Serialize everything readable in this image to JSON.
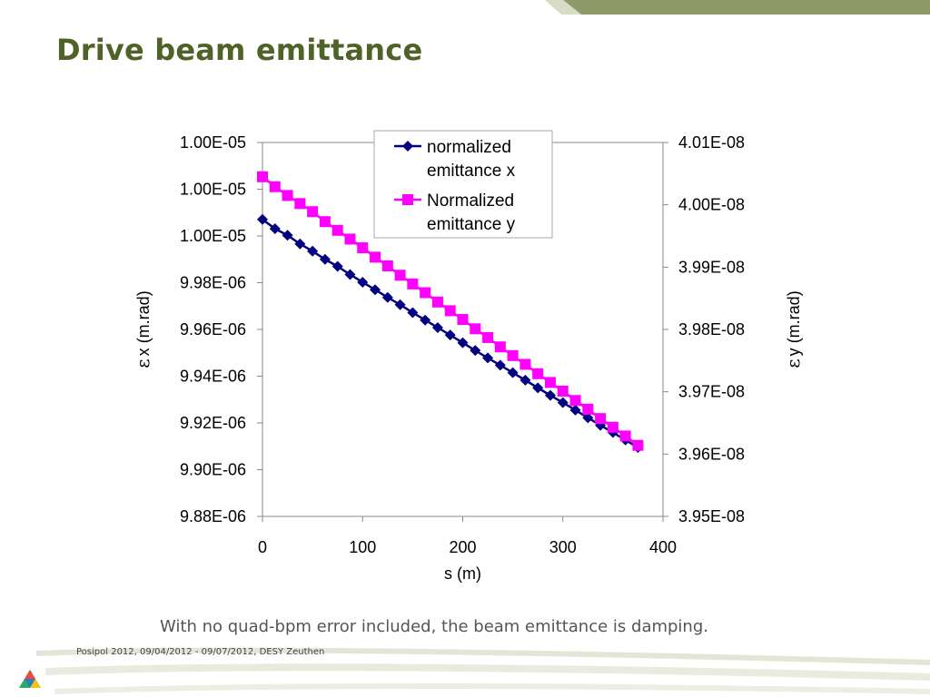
{
  "slide": {
    "title": "Drive beam emittance",
    "caption": "With no quad-bpm error included, the beam emittance is damping.",
    "footer": "Posipol 2012, 09/04/2012 - 09/07/2012, DESY Zeuthen",
    "colors": {
      "title": "#4f6228",
      "band": "#8e9a6a",
      "band_light": "#d7dcc5"
    }
  },
  "chart_data": {
    "type": "line",
    "xlabel": "s (m)",
    "xlim": [
      0,
      400
    ],
    "x_ticks": [
      "0",
      "100",
      "200",
      "300",
      "400"
    ],
    "y_left": {
      "label_symbol": "ε",
      "label_text": "x (m.rad)",
      "ylim": [
        9.88e-06,
        1.004e-05
      ],
      "tick_labels": [
        "1.00E-05",
        "1.00E-05",
        "1.00E-05",
        "9.98E-06",
        "9.96E-06",
        "9.94E-06",
        "9.92E-06",
        "9.90E-06",
        "9.88E-06"
      ]
    },
    "y_right": {
      "label_symbol": "ε",
      "label_text": "y (m.rad)",
      "ylim": [
        3.95e-08,
        4.01e-08
      ],
      "tick_labels": [
        "4.01E-08",
        "4.00E-08",
        "3.99E-08",
        "3.98E-08",
        "3.97E-08",
        "3.96E-08",
        "3.95E-08"
      ]
    },
    "legend": {
      "placement": "top-center"
    },
    "series": [
      {
        "name": "normalized emittance x",
        "legend_lines": [
          "normalized",
          "emittance x"
        ],
        "axis": "left",
        "color": "#000080",
        "marker": "diamond",
        "x": [
          0,
          12.5,
          25,
          37.5,
          50,
          62.5,
          75,
          87.5,
          100,
          112.5,
          125,
          137.5,
          150,
          162.5,
          175,
          187.5,
          200,
          212.5,
          225,
          237.5,
          250,
          262.5,
          275,
          287.5,
          300,
          312.5,
          325,
          337.5,
          350,
          362.5,
          375
        ],
        "y": [
          1.00071e-05,
          1.00031e-05,
          1.00003e-05,
          9.9966e-06,
          9.9935e-06,
          9.99e-06,
          9.987e-06,
          9.9835e-06,
          9.9802e-06,
          9.977e-06,
          9.9737e-06,
          9.9706e-06,
          9.9672e-06,
          9.964e-06,
          9.9608e-06,
          9.9576e-06,
          9.9543e-06,
          9.951e-06,
          9.9478e-06,
          9.9447e-06,
          9.9415e-06,
          9.9383e-06,
          9.935e-06,
          9.9318e-06,
          9.9287e-06,
          9.9255e-06,
          9.9222e-06,
          9.919e-06,
          9.9159e-06,
          9.9127e-06,
          9.9095e-06
        ]
      },
      {
        "name": "Normalized emittance y",
        "legend_lines": [
          "Normalized",
          "emittance y"
        ],
        "axis": "right",
        "color": "#ff00ff",
        "marker": "square",
        "x": [
          0,
          12.5,
          25,
          37.5,
          50,
          62.5,
          75,
          87.5,
          100,
          112.5,
          125,
          137.5,
          150,
          162.5,
          175,
          187.5,
          200,
          212.5,
          225,
          237.5,
          250,
          262.5,
          275,
          287.5,
          300,
          312.5,
          325,
          337.5,
          350,
          362.5,
          375
        ],
        "y": [
          4.0045e-08,
          4.0029e-08,
          4.0015e-08,
          4.0002e-08,
          3.9989e-08,
          3.9973e-08,
          3.9959e-08,
          3.9945e-08,
          3.9931e-08,
          3.9916e-08,
          3.9902e-08,
          3.9887e-08,
          3.9873e-08,
          3.9859e-08,
          3.9844e-08,
          3.983e-08,
          3.9816e-08,
          3.9801e-08,
          3.9787e-08,
          3.9772e-08,
          3.9758e-08,
          3.9744e-08,
          3.9729e-08,
          3.9715e-08,
          3.9701e-08,
          3.9686e-08,
          3.9672e-08,
          3.9657e-08,
          3.9643e-08,
          3.9629e-08,
          3.9614e-08
        ]
      }
    ]
  }
}
